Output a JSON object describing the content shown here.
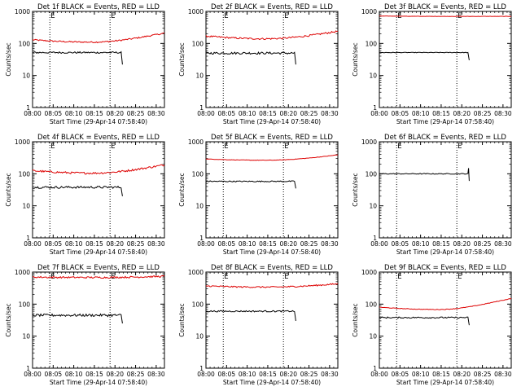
{
  "chart_data": {
    "type": "line",
    "panels": [
      {
        "title": "Det 1f BLACK = Events, RED = LLD",
        "xlabel": "Start Time (29-Apr-14 07:58:40)",
        "ylabel": "Counts/sec",
        "red": {
          "start": 130,
          "mid": 110,
          "end": 210,
          "noise": 0.05,
          "endx": 32
        },
        "black": {
          "level": 52,
          "noise": 0.06,
          "endx": 21.5,
          "drop": 22
        }
      },
      {
        "title": "Det 2f BLACK = Events, RED = LLD",
        "xlabel": "Start Time (29-Apr-14 07:58:40)",
        "ylabel": "Counts/sec",
        "red": {
          "start": 170,
          "mid": 140,
          "end": 240,
          "noise": 0.06,
          "endx": 32
        },
        "black": {
          "level": 50,
          "noise": 0.08,
          "endx": 21.5,
          "drop": 22
        }
      },
      {
        "title": "Det 3f BLACK = Events, RED = LLD",
        "xlabel": "Start Time (29-Apr-14 07:58:40)",
        "ylabel": "Counts/sec",
        "red": {
          "start": 720,
          "mid": 700,
          "end": 700,
          "noise": 0.01,
          "endx": 32
        },
        "black": {
          "level": 52,
          "noise": 0.02,
          "endx": 21.5,
          "drop": 30
        }
      },
      {
        "title": "Det 4f BLACK = Events, RED = LLD",
        "xlabel": "Start Time (29-Apr-14 07:58:40)",
        "ylabel": "Counts/sec",
        "red": {
          "start": 125,
          "mid": 105,
          "end": 190,
          "noise": 0.07,
          "endx": 32
        },
        "black": {
          "level": 38,
          "noise": 0.08,
          "endx": 21.5,
          "drop": 20
        }
      },
      {
        "title": "Det 5f BLACK = Events, RED = LLD",
        "xlabel": "Start Time (29-Apr-14 07:58:40)",
        "ylabel": "Counts/sec",
        "red": {
          "start": 290,
          "mid": 265,
          "end": 390,
          "noise": 0.015,
          "endx": 32
        },
        "black": {
          "level": 58,
          "noise": 0.04,
          "endx": 21.5,
          "drop": 35
        }
      },
      {
        "title": "Det 6f BLACK = Events, RED = LLD",
        "xlabel": "Start Time (29-Apr-14 07:58:40)",
        "ylabel": "Counts/sec",
        "red": null,
        "black": {
          "level": 100,
          "noise": 0.03,
          "endx": 21.5,
          "drop": 60,
          "rise": 150
        }
      },
      {
        "title": "Det 7f BLACK = Events, RED = LLD",
        "xlabel": "Start Time (29-Apr-14 07:58:40)",
        "ylabel": "Counts/sec",
        "red": {
          "start": 700,
          "mid": 680,
          "end": 740,
          "noise": 0.06,
          "endx": 32
        },
        "black": {
          "level": 45,
          "noise": 0.09,
          "endx": 21.5,
          "drop": 25
        }
      },
      {
        "title": "Det 8f BLACK = Events, RED = LLD",
        "xlabel": "Start Time (29-Apr-14 07:58:40)",
        "ylabel": "Counts/sec",
        "red": {
          "start": 370,
          "mid": 340,
          "end": 430,
          "noise": 0.05,
          "endx": 32
        },
        "black": {
          "level": 60,
          "noise": 0.05,
          "endx": 21.5,
          "drop": 30
        }
      },
      {
        "title": "Det 9f BLACK = Events, RED = LLD",
        "xlabel": "Start Time (29-Apr-14 07:58:40)",
        "ylabel": "Counts/sec",
        "red": {
          "start": 80,
          "mid": 68,
          "end": 150,
          "noise": 0.02,
          "endx": 32
        },
        "black": {
          "level": 38,
          "noise": 0.05,
          "endx": 21.5,
          "drop": 22
        }
      }
    ],
    "xlim": [
      0,
      32
    ],
    "xticks": [
      "08:00",
      "08:05",
      "08:10",
      "08:15",
      "08:20",
      "08:25",
      "08:30"
    ],
    "ylim": [
      1,
      1000
    ],
    "yscale": "log",
    "yticks": [
      "1",
      "10",
      "100",
      "1000"
    ],
    "vlines": [
      4.2,
      18.8
    ],
    "markers": [
      "E",
      "E"
    ],
    "colors": {
      "events": "#000000",
      "lld": "#dd0000",
      "axes": "#000000"
    }
  }
}
